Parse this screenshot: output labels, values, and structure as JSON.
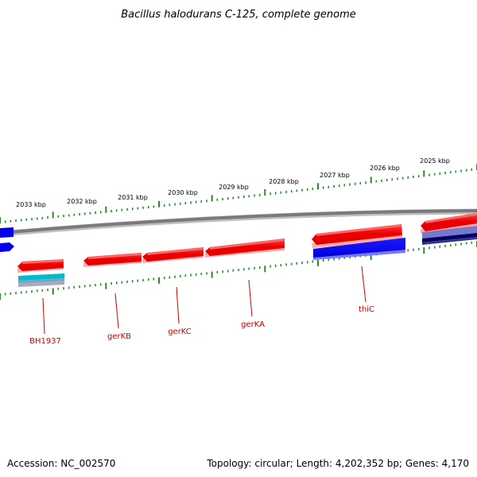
{
  "title": "Bacillus halodurans C-125, complete genome",
  "footer": {
    "accession": "Accession: NC_002570",
    "topology": "Topology: circular; Length: 4,202,352 bp; Genes: 4,170"
  },
  "colors": {
    "forward_gene": "#ee0000",
    "reverse_gene": "#0000ee",
    "light_blue": "#7777cc",
    "dark_navy": "#000066",
    "cyan_gene": "#00bbcc",
    "grey_gene": "#9999aa",
    "backbone": "#8a8a8a",
    "ticks": "#2a8a2a",
    "gene_label": "#cc0000"
  },
  "scale_labels": [
    "2033 kbp",
    "2032 kbp",
    "2031 kbp",
    "2030 kbp",
    "2029 kbp",
    "2028 kbp",
    "2027 kbp",
    "2026 kbp",
    "2025 kbp"
  ],
  "gene_labels": [
    "BH1937",
    "gerKB",
    "gerKC",
    "gerKA",
    "thiC"
  ]
}
